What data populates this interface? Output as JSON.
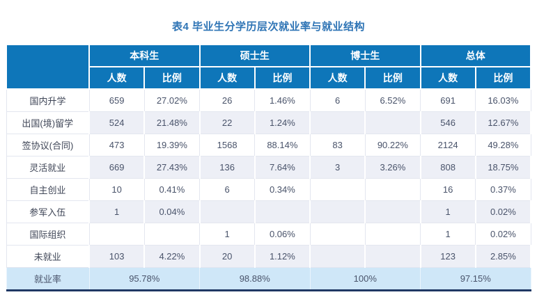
{
  "title": "表4 毕业生分学历层次就业率与就业结构",
  "colors": {
    "header_bg": "#0e76b9",
    "header_text": "#ffffff",
    "alt_row_bg": "#edeff6",
    "footer_row_bg": "#cfe7f8",
    "bottom_rule": "#1f3864",
    "title_text": "#2e74b5",
    "body_text": "#49536a",
    "grid_line": "#e3e6ef"
  },
  "table": {
    "corner_label": "",
    "groups": [
      {
        "label": "本科生"
      },
      {
        "label": "硕士生"
      },
      {
        "label": "博士生"
      },
      {
        "label": "总体"
      }
    ],
    "subheaders": {
      "count": "人数",
      "ratio": "比例"
    },
    "rows": [
      {
        "label": "国内升学",
        "values": [
          "659",
          "27.02%",
          "26",
          "1.46%",
          "6",
          "6.52%",
          "691",
          "16.03%"
        ]
      },
      {
        "label": "出国(境)留学",
        "values": [
          "524",
          "21.48%",
          "22",
          "1.24%",
          "",
          "",
          "546",
          "12.67%"
        ]
      },
      {
        "label": "签协议(合同)",
        "values": [
          "473",
          "19.39%",
          "1568",
          "88.14%",
          "83",
          "90.22%",
          "2124",
          "49.28%"
        ]
      },
      {
        "label": "灵活就业",
        "values": [
          "669",
          "27.43%",
          "136",
          "7.64%",
          "3",
          "3.26%",
          "808",
          "18.75%"
        ]
      },
      {
        "label": "自主创业",
        "values": [
          "10",
          "0.41%",
          "6",
          "0.34%",
          "",
          "",
          "16",
          "0.37%"
        ]
      },
      {
        "label": "参军入伍",
        "values": [
          "1",
          "0.04%",
          "",
          "",
          "",
          "",
          "1",
          "0.02%"
        ]
      },
      {
        "label": "国际组织",
        "values": [
          "",
          "",
          "1",
          "0.06%",
          "",
          "",
          "1",
          "0.02%"
        ]
      },
      {
        "label": "未就业",
        "values": [
          "103",
          "4.22%",
          "20",
          "1.12%",
          "",
          "",
          "123",
          "2.85%"
        ]
      }
    ],
    "footer": {
      "label": "就业率",
      "values": [
        "95.78%",
        "98.88%",
        "100%",
        "97.15%"
      ]
    }
  },
  "chart_data": {
    "type": "table",
    "title": "表4 毕业生分学历层次就业率与就业结构",
    "column_groups": [
      "本科生",
      "硕士生",
      "博士生",
      "总体"
    ],
    "columns": [
      "人数",
      "比例",
      "人数",
      "比例",
      "人数",
      "比例",
      "人数",
      "比例"
    ],
    "rows": [
      [
        "国内升学",
        "659",
        "27.02%",
        "26",
        "1.46%",
        "6",
        "6.52%",
        "691",
        "16.03%"
      ],
      [
        "出国(境)留学",
        "524",
        "21.48%",
        "22",
        "1.24%",
        "",
        "",
        "546",
        "12.67%"
      ],
      [
        "签协议(合同)",
        "473",
        "19.39%",
        "1568",
        "88.14%",
        "83",
        "90.22%",
        "2124",
        "49.28%"
      ],
      [
        "灵活就业",
        "669",
        "27.43%",
        "136",
        "7.64%",
        "3",
        "3.26%",
        "808",
        "18.75%"
      ],
      [
        "自主创业",
        "10",
        "0.41%",
        "6",
        "0.34%",
        "",
        "",
        "16",
        "0.37%"
      ],
      [
        "参军入伍",
        "1",
        "0.04%",
        "",
        "",
        "",
        "",
        "1",
        "0.02%"
      ],
      [
        "国际组织",
        "",
        "",
        "1",
        "0.06%",
        "",
        "",
        "1",
        "0.02%"
      ],
      [
        "未就业",
        "103",
        "4.22%",
        "20",
        "1.12%",
        "",
        "",
        "123",
        "2.85%"
      ],
      [
        "就业率",
        "95.78%",
        "95.78%",
        "98.88%",
        "98.88%",
        "100%",
        "100%",
        "97.15%",
        "97.15%"
      ]
    ]
  }
}
